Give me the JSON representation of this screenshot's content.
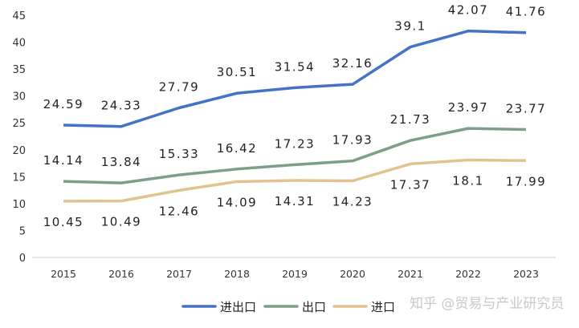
{
  "chart_data": {
    "type": "line",
    "categories": [
      "2015",
      "2016",
      "2017",
      "2018",
      "2019",
      "2020",
      "2021",
      "2022",
      "2023"
    ],
    "ylim": [
      0,
      45
    ],
    "yticks": [
      0,
      5,
      10,
      15,
      20,
      25,
      30,
      35,
      40,
      45
    ],
    "grid": false,
    "legend_placement": "bottom",
    "series": [
      {
        "name": "进出口",
        "color": "#4472c4",
        "values": [
          24.59,
          24.33,
          27.79,
          30.51,
          31.54,
          32.16,
          39.1,
          42.07,
          41.76
        ],
        "labels": [
          "24.59",
          "24.33",
          "27.79",
          "30.51",
          "31.54",
          "32.16",
          "39.1",
          "42.07",
          "41.76"
        ]
      },
      {
        "name": "出口",
        "color": "#7d9e88",
        "values": [
          14.14,
          13.84,
          15.33,
          16.42,
          17.23,
          17.93,
          21.73,
          23.97,
          23.77
        ],
        "labels": [
          "14.14",
          "13.84",
          "15.33",
          "16.42",
          "17.23",
          "17.93",
          "21.73",
          "23.97",
          "23.77"
        ]
      },
      {
        "name": "进口",
        "color": "#e2c38f",
        "values": [
          10.45,
          10.49,
          12.46,
          14.09,
          14.31,
          14.23,
          17.37,
          18.1,
          17.99
        ],
        "labels": [
          "10.45",
          "10.49",
          "12.46",
          "14.09",
          "14.31",
          "14.23",
          "17.37",
          "18.1",
          "17.99"
        ]
      }
    ]
  },
  "watermark": "知乎 @贸易与产业研究员"
}
